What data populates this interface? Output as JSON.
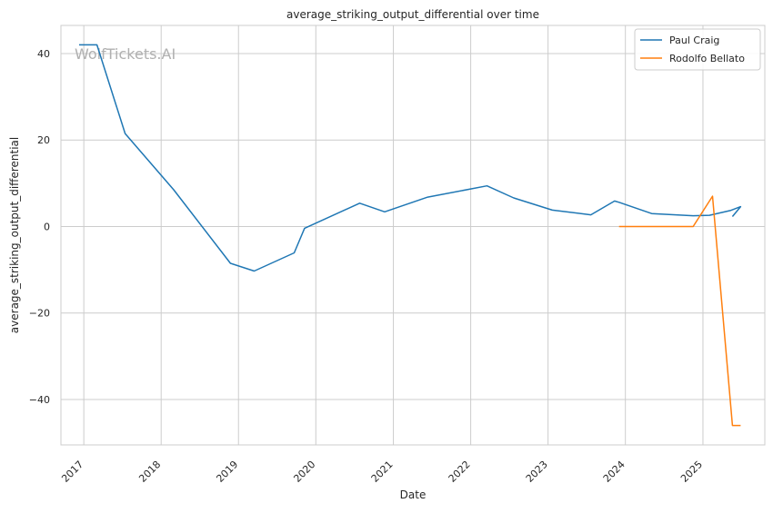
{
  "chart_data": {
    "type": "line",
    "title": "average_striking_output_differential over time",
    "xlabel": "Date",
    "ylabel": "average_striking_output_differential",
    "watermark": "WolfTickets.AI",
    "xlim": [
      "2016-09-15",
      "2025-10-20"
    ],
    "ylim": [
      -50.5,
      46.5
    ],
    "y_ticks": [
      40,
      20,
      0,
      -20,
      -40
    ],
    "y_tick_labels": [
      "40",
      "20",
      "0",
      "−20",
      "−40"
    ],
    "x_ticks": [
      "2017-01-01",
      "2018-01-01",
      "2019-01-01",
      "2020-01-01",
      "2021-01-01",
      "2022-01-01",
      "2023-01-01",
      "2024-01-01",
      "2025-01-01"
    ],
    "x_tick_labels": [
      "2017",
      "2018",
      "2019",
      "2020",
      "2021",
      "2022",
      "2023",
      "2024",
      "2025"
    ],
    "grid": true,
    "legend_position": "top-right",
    "series": [
      {
        "name": "Paul Craig",
        "color": "#1f77b4",
        "points": [
          [
            "2016-12-10",
            42.0
          ],
          [
            "2017-03-04",
            42.0
          ],
          [
            "2017-07-15",
            21.5
          ],
          [
            "2018-03-01",
            8.5
          ],
          [
            "2018-11-24",
            -8.5
          ],
          [
            "2019-03-16",
            -10.3
          ],
          [
            "2019-09-21",
            -6.1
          ],
          [
            "2019-11-09",
            -0.4
          ],
          [
            "2020-07-26",
            5.4
          ],
          [
            "2020-11-21",
            3.4
          ],
          [
            "2021-06-12",
            6.8
          ],
          [
            "2022-03-19",
            9.4
          ],
          [
            "2022-07-23",
            6.6
          ],
          [
            "2023-01-21",
            3.8
          ],
          [
            "2023-07-22",
            2.7
          ],
          [
            "2023-11-11",
            5.9
          ],
          [
            "2023-12-02",
            5.6
          ],
          [
            "2024-05-04",
            3.0
          ],
          [
            "2024-11-16",
            2.5
          ],
          [
            "2025-02-01",
            2.6
          ],
          [
            "2025-05-10",
            3.7
          ],
          [
            "2025-06-28",
            4.6
          ],
          [
            "2025-05-20",
            2.3
          ]
        ]
      },
      {
        "name": "Rodolfo Bellato",
        "color": "#ff7f0e",
        "points": [
          [
            "2023-12-02",
            0.0
          ],
          [
            "2024-11-16",
            0.0
          ],
          [
            "2025-02-15",
            7.0
          ],
          [
            "2025-05-20",
            -46.0
          ],
          [
            "2025-06-28",
            -46.0
          ]
        ]
      }
    ]
  }
}
